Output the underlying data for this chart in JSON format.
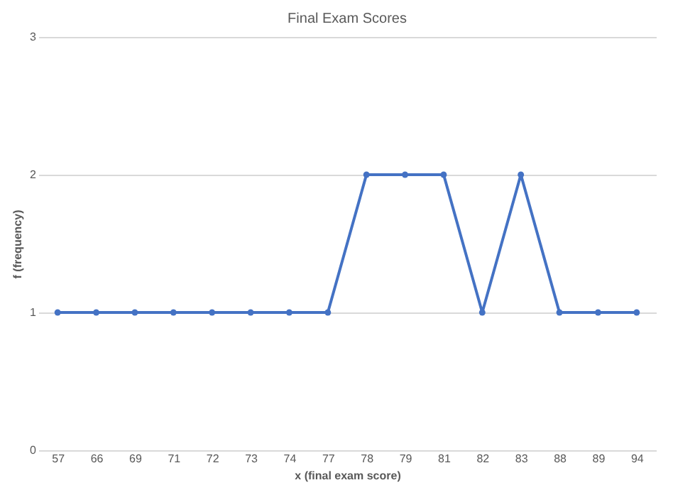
{
  "chart_data": {
    "type": "line",
    "title": "Final Exam Scores",
    "xlabel": "x (final exam score)",
    "ylabel": "f (frequency)",
    "categories": [
      "57",
      "66",
      "69",
      "71",
      "72",
      "73",
      "74",
      "77",
      "78",
      "79",
      "81",
      "82",
      "83",
      "88",
      "89",
      "94"
    ],
    "series": [
      {
        "color": "#4472c4",
        "values": [
          1,
          1,
          1,
          1,
          1,
          1,
          1,
          1,
          2,
          2,
          2,
          1,
          2,
          1,
          1,
          1
        ]
      }
    ],
    "ylim": [
      0,
      3
    ],
    "yticks": [
      0,
      1,
      2,
      3
    ],
    "grid": "y",
    "marker": "circle",
    "line_style": "solid"
  }
}
